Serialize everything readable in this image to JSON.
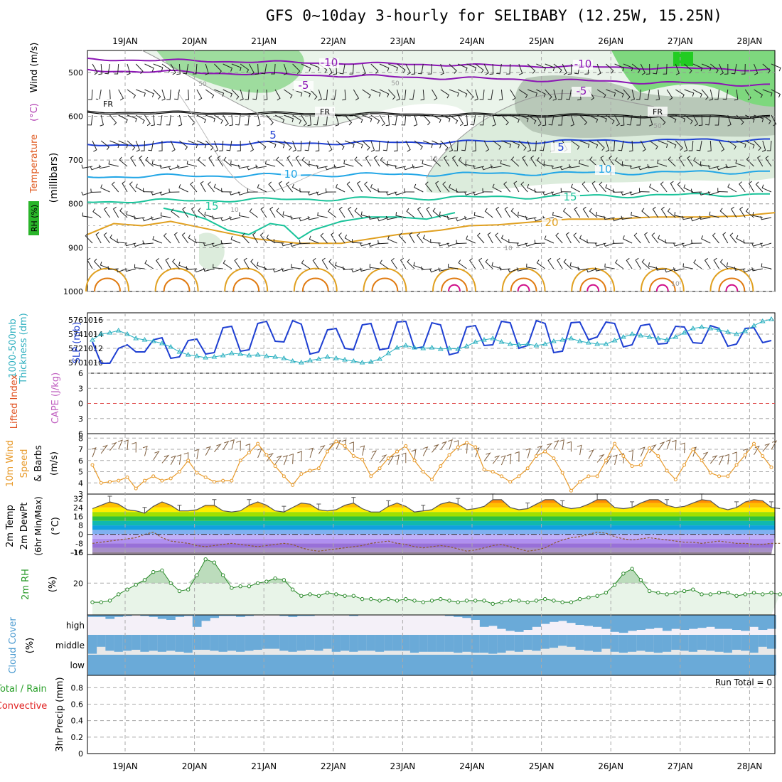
{
  "title": "GFS 0~10day 3-hourly for SELIBABY (12.25W, 15.25N)",
  "colors": {
    "purple": "#8b14b4",
    "blue": "#1e3fd2",
    "cyan": "#22a6e6",
    "teal": "#19c39a",
    "gold": "#e0a020",
    "orange": "#e07a10",
    "magenta": "#d0108a",
    "green": "#2ea83a",
    "cloud": "#6aaad8",
    "slp": "#1e3fd2",
    "thick": "#2ab0c0",
    "wind": "#e89a2a",
    "barb": "#806040"
  },
  "chart_data": [
    {
      "type": "heatmap",
      "name": "upper_air",
      "title": "GFS 0~10day 3-hourly for SELIBABY (12.25W, 15.25N)",
      "xlabel_dates": [
        "19JAN",
        "20JAN",
        "21JAN",
        "22JAN",
        "23JAN",
        "24JAN",
        "25JAN",
        "26JAN",
        "27JAN",
        "28JAN"
      ],
      "ylabel_parts": [
        "RH (%)",
        "Temperature",
        "(°C)",
        "Wind (m/s)",
        "(millibars)"
      ],
      "yticks": [
        500,
        600,
        700,
        800,
        900,
        1000
      ],
      "ylim": [
        450,
        1000
      ],
      "contour_labels": [
        {
          "text": "-10",
          "level": -10
        },
        {
          "text": "-10",
          "level": -10
        },
        {
          "text": "-5",
          "level": -5
        },
        {
          "text": "-5",
          "level": -5
        },
        {
          "text": "FR",
          "level": 0
        },
        {
          "text": "FR",
          "level": 0
        },
        {
          "text": "FR",
          "level": 0
        },
        {
          "text": "5",
          "level": 5
        },
        {
          "text": "5",
          "level": 5
        },
        {
          "text": "10",
          "level": 10
        },
        {
          "text": "10",
          "level": 10
        },
        {
          "text": "15",
          "level": 15
        },
        {
          "text": "15",
          "level": 15
        },
        {
          "text": "20",
          "level": 20
        }
      ],
      "rh_labels": [
        "50",
        "50",
        "50",
        "10",
        "10",
        "10",
        "10"
      ]
    },
    {
      "type": "line",
      "name": "slp_thickness",
      "ylabel_left": "1000-500mb Thickness (dm)",
      "ylabel_right": "SLP (mb)",
      "yticks_left": [
        570,
        572,
        574,
        576
      ],
      "yticks_right": [
        1010,
        1012,
        1014,
        1016
      ],
      "ylim_right": [
        1009.3,
        1016.6
      ],
      "series": [
        {
          "name": "SLP",
          "values": [
            1012.9,
            1009.9,
            1009.9,
            1012,
            1012.5,
            1011.5,
            1011.5,
            1013.2,
            1013.5,
            1010.6,
            1010.8,
            1013.1,
            1013.3,
            1011.2,
            1011.4,
            1014.9,
            1015.1,
            1011.6,
            1011.8,
            1015.5,
            1015.8,
            1013,
            1012.9,
            1015.9,
            1015.4,
            1011.2,
            1011.5,
            1014.6,
            1014.8,
            1012,
            1011.8,
            1015.3,
            1015.5,
            1011.8,
            1012,
            1015.7,
            1015.8,
            1012,
            1012.2,
            1015.6,
            1015.3,
            1011.1,
            1011.4,
            1015,
            1015.2,
            1012.4,
            1012.5,
            1015.8,
            1015.6,
            1012,
            1012.4,
            1015.9,
            1015.5,
            1011.4,
            1011.6,
            1015.6,
            1015.7,
            1013.2,
            1013.6,
            1015.7,
            1015.5,
            1012.2,
            1012.5,
            1015.2,
            1015.4,
            1012.6,
            1012.7,
            1015.1,
            1015,
            1012.8,
            1012.7,
            1015.2,
            1014.8,
            1012.3,
            1012.6,
            1014.8,
            1014.9,
            1012.8,
            1013.1
          ]
        },
        {
          "name": "Thickness",
          "values": [
            573.2,
            574.0,
            574.2,
            574.5,
            574.0,
            573.4,
            573.2,
            573.0,
            572.7,
            572.2,
            571.5,
            571.1,
            570.9,
            570.7,
            570.8,
            571.0,
            571.3,
            571.2,
            571.0,
            571.1,
            570.9,
            570.8,
            570.6,
            570.2,
            570.0,
            570.3,
            570.5,
            570.8,
            570.6,
            570.4,
            570.2,
            570.0,
            570.1,
            570.5,
            571.3,
            572.1,
            572.4,
            572.1,
            572.0,
            572.1,
            571.9,
            572.0,
            571.9,
            572.3,
            572.9,
            573.2,
            573.4,
            572.9,
            572.6,
            572.5,
            572.6,
            572.4,
            572.6,
            573.0,
            573.2,
            573.4,
            573.0,
            572.8,
            572.6,
            572.6,
            573.1,
            573.6,
            574.0,
            573.8,
            573.6,
            573.4,
            573.2,
            573.6,
            574.2,
            574.8,
            575.0,
            574.8,
            574.6,
            574.3,
            574.0,
            574.4,
            575.2,
            575.8,
            576.1
          ]
        }
      ]
    },
    {
      "type": "line",
      "name": "cape_li",
      "ylabel_left": "Lifted Index",
      "ylabel_right": "CAPE (J/kg)",
      "yticks": [
        -6,
        -3,
        0,
        3,
        6
      ],
      "ylim": [
        -6,
        6
      ],
      "series": [
        {
          "name": "LI zero line",
          "values": [
            0
          ]
        }
      ]
    },
    {
      "type": "line",
      "name": "wind10m",
      "ylabel": "10m Wind Speed & Barbs (m/s)",
      "ylabel_parts": [
        "10m Wind",
        "Speed",
        "& Barbs",
        "(m/s)"
      ],
      "yticks": [
        3,
        4,
        5,
        6,
        7,
        8
      ],
      "ylim": [
        3,
        8.4
      ],
      "series": [
        {
          "name": "Speed",
          "values": [
            5.6,
            4.0,
            4.1,
            4.2,
            4.5,
            3.5,
            4.2,
            4.6,
            4.2,
            4.4,
            5.0,
            6.0,
            4.9,
            4.5,
            4.1,
            4.2,
            4.2,
            6.0,
            6.7,
            7.5,
            6.5,
            5.5,
            4.6,
            3.8,
            4.8,
            5.1,
            5.3,
            6.8,
            7.7,
            7.3,
            6.4,
            6.1,
            4.6,
            5.3,
            6.2,
            6.8,
            7.3,
            6.0,
            5.0,
            4.3,
            5.5,
            6.5,
            7.2,
            7.6,
            7.2,
            5.2,
            5.0,
            4.6,
            4.1,
            4.6,
            5.3,
            6.4,
            6.8,
            6.2,
            4.9,
            3.3,
            4.1,
            4.6,
            4.6,
            6.0,
            7.5,
            6.4,
            5.5,
            5.6,
            7.1,
            6.4,
            5.1,
            4.3,
            5.6,
            7.0,
            6.0,
            4.9,
            4.6,
            4.6,
            5.6,
            6.5,
            7.5,
            6.4,
            5.4
          ]
        }
      ]
    },
    {
      "type": "area",
      "name": "temp2m",
      "ylabel": "2m Temp 2m DewPt (6hr Min/Max) (°C)",
      "ylabel_parts": [
        "2m Temp",
        "2m DewPt",
        "(6hr Min/Max)",
        "(°C)"
      ],
      "yticks": [
        -16,
        -8,
        0,
        8,
        16,
        24,
        32
      ],
      "ylim": [
        -18,
        36
      ],
      "series": [
        {
          "name": "Temp",
          "values": [
            23,
            26,
            29,
            27,
            22,
            21,
            19,
            25,
            29,
            26,
            21,
            21,
            22,
            26,
            26,
            21,
            20,
            21,
            26,
            29,
            26,
            21,
            20,
            24,
            28,
            27,
            22,
            21,
            22,
            26,
            28,
            23,
            20,
            20,
            25,
            28,
            25,
            20,
            21,
            22,
            27,
            29,
            27,
            22,
            23,
            25,
            31,
            31,
            24,
            22,
            23,
            27,
            31,
            31,
            25,
            23,
            24,
            27,
            31,
            31,
            24,
            23,
            24,
            28,
            31,
            31,
            26,
            24,
            25,
            28,
            31,
            30,
            24,
            22,
            24,
            29,
            31,
            30,
            24,
            23
          ]
        },
        {
          "name": "DewPt",
          "values": [
            -8,
            -7,
            -6,
            -5,
            -4,
            -3,
            0,
            2,
            -3,
            -6,
            -7,
            -8,
            -10,
            -11,
            -10,
            -9,
            -8,
            -9,
            -10,
            -11,
            -10,
            -9,
            -8,
            -9,
            -12,
            -14,
            -15,
            -14,
            -13,
            -12,
            -11,
            -10,
            -8,
            -7,
            -6,
            -8,
            -9,
            -11,
            -12,
            -11,
            -10,
            -11,
            -13,
            -15,
            -14,
            -12,
            -10,
            -9,
            -11,
            -13,
            -15,
            -14,
            -12,
            -8,
            -5,
            -3,
            -2,
            0,
            2,
            1,
            -2,
            -4,
            -5,
            -4,
            -3,
            -4,
            -5,
            -6,
            -7,
            -7,
            -8,
            -7,
            -6,
            -7,
            -8,
            -8,
            -9,
            -9,
            -8,
            -8
          ]
        }
      ]
    },
    {
      "type": "area",
      "name": "rh2m",
      "ylabel": "2m RH (%)",
      "yticks": [
        20
      ],
      "ylim": [
        0,
        38
      ],
      "series": [
        {
          "name": "RH",
          "values": [
            8,
            8,
            9,
            13,
            16,
            19,
            22,
            27,
            28,
            20,
            15,
            16,
            25,
            35,
            33,
            25,
            17,
            18,
            18,
            20,
            21,
            23,
            22,
            16,
            12,
            13,
            12,
            14,
            13,
            12,
            12,
            10,
            10,
            9,
            10,
            9,
            10,
            9,
            8,
            9,
            10,
            9,
            8,
            9,
            9,
            9,
            7,
            8,
            9,
            9,
            8,
            9,
            10,
            9,
            8,
            8,
            10,
            11,
            12,
            14,
            19,
            26,
            29,
            22,
            15,
            14,
            13,
            14,
            15,
            16,
            13,
            13,
            14,
            14,
            12,
            13,
            14,
            13,
            14,
            13
          ]
        }
      ]
    },
    {
      "type": "heatmap",
      "name": "cloud_cover",
      "ylabel": "Cloud Cover (%)",
      "ylabel_parts": [
        "Cloud Cover",
        "(%)"
      ],
      "yticks": [
        "high",
        "middle",
        "low"
      ],
      "series": [
        {
          "name": "high",
          "values": [
            10,
            10,
            20,
            10,
            5,
            0,
            5,
            10,
            20,
            25,
            10,
            5,
            60,
            30,
            15,
            5,
            5,
            10,
            5,
            0,
            0,
            0,
            5,
            10,
            5,
            5,
            0,
            0,
            0,
            0,
            5,
            0,
            0,
            0,
            0,
            0,
            0,
            0,
            0,
            0,
            0,
            5,
            10,
            15,
            25,
            60,
            55,
            70,
            80,
            85,
            75,
            60,
            45,
            35,
            30,
            40,
            50,
            55,
            60,
            70,
            85,
            90,
            80,
            75,
            70,
            65,
            80,
            70,
            75,
            70,
            65,
            60,
            70,
            70,
            75,
            80,
            60,
            75,
            70
          ]
        },
        {
          "name": "middle",
          "values": [
            95,
            60,
            80,
            85,
            80,
            75,
            85,
            80,
            85,
            80,
            85,
            90,
            75,
            75,
            80,
            85,
            80,
            85,
            80,
            75,
            70,
            70,
            80,
            85,
            80,
            75,
            80,
            70,
            85,
            80,
            85,
            80,
            80,
            85,
            80,
            80,
            80,
            90,
            85,
            85,
            85,
            85,
            90,
            85,
            90,
            90,
            95,
            90,
            80,
            85,
            75,
            80,
            70,
            65,
            55,
            60,
            75,
            80,
            85,
            70,
            85,
            90,
            85,
            80,
            85,
            90,
            85,
            75,
            80,
            85,
            75,
            80,
            85,
            90,
            75,
            80,
            90,
            60,
            70
          ]
        },
        {
          "name": "low",
          "values": [
            100,
            100,
            100,
            100,
            100,
            100,
            100,
            100,
            100,
            100,
            100,
            100,
            100,
            100,
            100,
            100,
            100,
            100,
            100,
            100,
            100,
            100,
            100,
            100,
            100,
            100,
            100,
            100,
            100,
            100,
            100,
            100,
            100,
            100,
            100,
            100,
            100,
            100,
            100,
            100,
            100,
            100,
            100,
            100,
            100,
            100,
            100,
            100,
            100,
            100,
            100,
            100,
            100,
            100,
            100,
            100,
            100,
            100,
            100,
            100,
            100,
            100,
            100,
            100,
            100,
            100,
            100,
            100,
            100,
            100,
            100,
            100,
            100,
            100,
            100,
            100,
            100,
            100,
            100
          ]
        }
      ]
    },
    {
      "type": "bar",
      "name": "precip",
      "ylabel": "3hr Precip (mm)",
      "ylabel_left_parts": [
        "Total / Rain",
        "Convective"
      ],
      "yticks": [
        0,
        0.2,
        0.4,
        0.6,
        0.8
      ],
      "ylim": [
        0,
        0.95
      ],
      "annotation": "Run Total = 0",
      "values": [
        0
      ]
    }
  ]
}
